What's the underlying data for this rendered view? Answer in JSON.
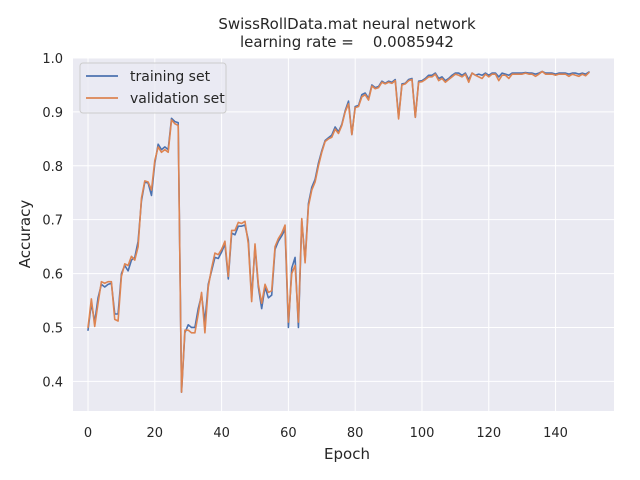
{
  "chart_data": {
    "type": "line",
    "title": "SwissRollData.mat neural network",
    "subtitle": "learning rate =    0.0085942",
    "xlabel": "Epoch",
    "ylabel": "Accuracy",
    "xlim": [
      -4.5,
      157.5
    ],
    "ylim": [
      0.345,
      1.0
    ],
    "xticks": [
      0,
      20,
      40,
      60,
      80,
      100,
      120,
      140
    ],
    "yticks": [
      0.4,
      0.5,
      0.6,
      0.7,
      0.8,
      0.9,
      1.0
    ],
    "xtick_labels": [
      "0",
      "20",
      "40",
      "60",
      "80",
      "100",
      "120",
      "140"
    ],
    "ytick_labels": [
      "0.4",
      "0.5",
      "0.6",
      "0.7",
      "0.8",
      "0.9",
      "1.0"
    ],
    "grid": true,
    "legend_position": "top-left",
    "colors": {
      "background": "#eaeaf2",
      "grid": "#ffffff",
      "training": "#4c72b0",
      "validation": "#dd8452"
    },
    "x": [
      0,
      1,
      2,
      3,
      4,
      5,
      6,
      7,
      8,
      9,
      10,
      11,
      12,
      13,
      14,
      15,
      16,
      17,
      18,
      19,
      20,
      21,
      22,
      23,
      24,
      25,
      26,
      27,
      28,
      29,
      30,
      31,
      32,
      33,
      34,
      35,
      36,
      37,
      38,
      39,
      40,
      41,
      42,
      43,
      44,
      45,
      46,
      47,
      48,
      49,
      50,
      51,
      52,
      53,
      54,
      55,
      56,
      57,
      58,
      59,
      60,
      61,
      62,
      63,
      64,
      65,
      66,
      67,
      68,
      69,
      70,
      71,
      72,
      73,
      74,
      75,
      76,
      77,
      78,
      79,
      80,
      81,
      82,
      83,
      84,
      85,
      86,
      87,
      88,
      89,
      90,
      91,
      92,
      93,
      94,
      95,
      96,
      97,
      98,
      99,
      100,
      101,
      102,
      103,
      104,
      105,
      106,
      107,
      108,
      109,
      110,
      111,
      112,
      113,
      114,
      115,
      116,
      117,
      118,
      119,
      120,
      121,
      122,
      123,
      124,
      125,
      126,
      127,
      128,
      129,
      130,
      131,
      132,
      133,
      134,
      135,
      136,
      137,
      138,
      139,
      140,
      141,
      142,
      143,
      144,
      145,
      146,
      147,
      148,
      149,
      150
    ],
    "series": [
      {
        "name": "training set",
        "values": [
          0.495,
          0.545,
          0.51,
          0.555,
          0.58,
          0.575,
          0.58,
          0.582,
          0.525,
          0.525,
          0.6,
          0.615,
          0.605,
          0.625,
          0.63,
          0.66,
          0.735,
          0.77,
          0.768,
          0.745,
          0.805,
          0.84,
          0.83,
          0.835,
          0.83,
          0.888,
          0.882,
          0.88,
          0.38,
          0.49,
          0.505,
          0.5,
          0.5,
          0.535,
          0.56,
          0.51,
          0.58,
          0.605,
          0.63,
          0.628,
          0.64,
          0.655,
          0.59,
          0.675,
          0.672,
          0.688,
          0.688,
          0.69,
          0.662,
          0.555,
          0.65,
          0.575,
          0.535,
          0.575,
          0.555,
          0.56,
          0.645,
          0.66,
          0.67,
          0.682,
          0.5,
          0.61,
          0.63,
          0.5,
          0.698,
          0.625,
          0.73,
          0.76,
          0.775,
          0.805,
          0.828,
          0.847,
          0.852,
          0.857,
          0.872,
          0.863,
          0.877,
          0.902,
          0.92,
          0.858,
          0.91,
          0.912,
          0.932,
          0.935,
          0.925,
          0.95,
          0.945,
          0.947,
          0.957,
          0.953,
          0.957,
          0.955,
          0.96,
          0.89,
          0.952,
          0.953,
          0.96,
          0.962,
          0.89,
          0.957,
          0.958,
          0.962,
          0.968,
          0.968,
          0.972,
          0.962,
          0.965,
          0.958,
          0.962,
          0.968,
          0.972,
          0.972,
          0.968,
          0.972,
          0.96,
          0.972,
          0.968,
          0.97,
          0.968,
          0.972,
          0.968,
          0.972,
          0.972,
          0.965,
          0.972,
          0.97,
          0.968,
          0.972,
          0.972,
          0.972,
          0.972,
          0.973,
          0.972,
          0.972,
          0.97,
          0.972,
          0.975,
          0.972,
          0.972,
          0.972,
          0.97,
          0.972,
          0.972,
          0.972,
          0.97,
          0.972,
          0.972,
          0.97,
          0.972,
          0.97,
          0.974
        ]
      },
      {
        "name": "validation set",
        "values": [
          0.5,
          0.553,
          0.502,
          0.545,
          0.585,
          0.582,
          0.585,
          0.585,
          0.515,
          0.512,
          0.595,
          0.618,
          0.615,
          0.632,
          0.625,
          0.65,
          0.74,
          0.772,
          0.77,
          0.755,
          0.81,
          0.835,
          0.825,
          0.83,
          0.825,
          0.885,
          0.878,
          0.875,
          0.38,
          0.495,
          0.495,
          0.49,
          0.49,
          0.525,
          0.565,
          0.49,
          0.575,
          0.61,
          0.638,
          0.635,
          0.645,
          0.66,
          0.595,
          0.68,
          0.68,
          0.695,
          0.693,
          0.697,
          0.655,
          0.548,
          0.655,
          0.58,
          0.545,
          0.58,
          0.565,
          0.568,
          0.65,
          0.665,
          0.675,
          0.69,
          0.51,
          0.6,
          0.615,
          0.51,
          0.702,
          0.62,
          0.725,
          0.755,
          0.77,
          0.8,
          0.825,
          0.845,
          0.85,
          0.853,
          0.868,
          0.86,
          0.875,
          0.9,
          0.915,
          0.858,
          0.908,
          0.91,
          0.928,
          0.932,
          0.922,
          0.948,
          0.943,
          0.945,
          0.955,
          0.952,
          0.955,
          0.953,
          0.958,
          0.887,
          0.95,
          0.952,
          0.958,
          0.96,
          0.89,
          0.955,
          0.956,
          0.96,
          0.965,
          0.965,
          0.97,
          0.958,
          0.962,
          0.955,
          0.96,
          0.965,
          0.97,
          0.968,
          0.965,
          0.97,
          0.955,
          0.972,
          0.968,
          0.965,
          0.962,
          0.97,
          0.965,
          0.97,
          0.97,
          0.958,
          0.968,
          0.968,
          0.962,
          0.97,
          0.97,
          0.97,
          0.97,
          0.972,
          0.97,
          0.97,
          0.966,
          0.97,
          0.975,
          0.97,
          0.97,
          0.97,
          0.968,
          0.97,
          0.97,
          0.97,
          0.966,
          0.97,
          0.968,
          0.966,
          0.97,
          0.967,
          0.973
        ]
      }
    ]
  }
}
